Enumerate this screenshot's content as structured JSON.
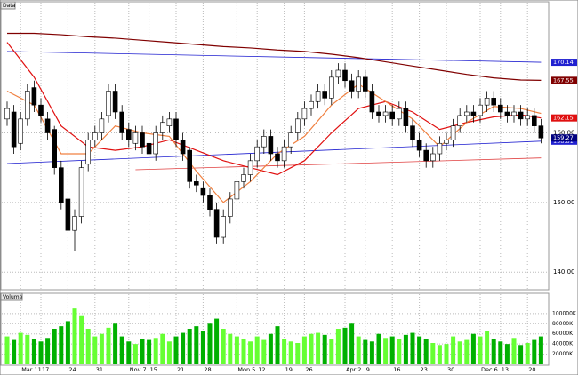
{
  "chart_data": [
    {
      "type": "candlestick",
      "title": "Data",
      "categories": [
        null,
        null,
        "Mar 11",
        null,
        null,
        "17",
        null,
        null,
        null,
        "24",
        null,
        null,
        null,
        "31",
        null,
        null,
        null,
        null,
        "Nov 7",
        null,
        null,
        "15",
        null,
        null,
        null,
        "21",
        null,
        null,
        null,
        "28",
        null,
        null,
        null,
        null,
        "Mon 5",
        null,
        null,
        "12",
        null,
        null,
        null,
        "19",
        null,
        null,
        "26",
        null,
        null,
        null,
        null,
        null,
        "Apr 2",
        null,
        null,
        "9",
        null,
        null,
        null,
        "16",
        null,
        null,
        null,
        "23",
        null,
        null,
        null,
        "30",
        null,
        null,
        null,
        null,
        "Dec 6",
        null,
        null,
        "13",
        null,
        null,
        null,
        "20",
        null,
        null
      ],
      "open": [
        162,
        163,
        158.5,
        162,
        166.5,
        164,
        162,
        160.5,
        155,
        150.5,
        146,
        148,
        155.5,
        159,
        160,
        162.5,
        166,
        163,
        160.5,
        158.5,
        160,
        158.5,
        157,
        160,
        161,
        162,
        159,
        157.5,
        153,
        152,
        151,
        149,
        145,
        148,
        150.5,
        153,
        154,
        156,
        158,
        159.5,
        157,
        156,
        158,
        160,
        162,
        163.5,
        164.5,
        166,
        165,
        168,
        169,
        167.5,
        166,
        168,
        166,
        163,
        162.5,
        163,
        162,
        163.5,
        161,
        159,
        157.5,
        156,
        157,
        158.5,
        159,
        161,
        162.5,
        163,
        162.5,
        164,
        165,
        164,
        163,
        162.5,
        163,
        162,
        162.5,
        161
      ],
      "high": [
        164.5,
        164,
        163,
        167,
        167.5,
        165,
        163,
        161,
        156,
        151,
        149,
        156,
        160,
        161,
        163,
        167,
        167,
        164,
        161.5,
        161,
        161,
        159.5,
        161,
        162.5,
        163,
        163,
        160,
        158,
        154,
        153,
        152,
        150,
        149,
        151.5,
        154,
        155,
        157,
        159,
        160.5,
        160.5,
        158,
        159,
        161,
        163,
        164.5,
        165.5,
        167,
        167,
        169,
        170,
        170,
        168.5,
        169,
        169,
        167,
        164,
        164,
        164,
        164.5,
        164.5,
        162,
        160,
        158.5,
        158,
        159.5,
        160,
        162,
        163.5,
        164,
        164,
        165,
        166,
        166,
        165,
        164,
        164,
        164,
        163.5,
        163.5,
        162
      ],
      "low": [
        161,
        157,
        157.5,
        161,
        163,
        161.5,
        159,
        154,
        149,
        145,
        143,
        147,
        154.5,
        158,
        159,
        161.5,
        162,
        159,
        158,
        157.5,
        157,
        156,
        156,
        159,
        160,
        158,
        156,
        152,
        151.5,
        150,
        148,
        144,
        144,
        147,
        149.5,
        152,
        153,
        155,
        157,
        156,
        155,
        155,
        157,
        159,
        161,
        162.5,
        163.5,
        164,
        164,
        167,
        166.5,
        165,
        165,
        165,
        162,
        161.5,
        161.5,
        161,
        161,
        160,
        158,
        156.5,
        155,
        155,
        156,
        157.5,
        158,
        160,
        161.5,
        161.5,
        161.5,
        163,
        163,
        162,
        161.5,
        161.5,
        161,
        161,
        160,
        158.5
      ],
      "close": [
        163.5,
        158,
        162,
        166,
        164,
        162.5,
        160,
        155,
        150,
        146,
        148,
        155,
        159,
        160,
        162,
        166,
        163,
        160,
        159,
        160,
        158,
        157,
        160,
        161.5,
        162,
        159,
        157,
        153,
        152.5,
        151,
        149,
        145,
        148,
        150.5,
        153,
        154,
        156,
        158,
        159.5,
        157,
        156,
        158,
        160,
        162,
        163.5,
        164.5,
        166,
        165,
        168,
        169,
        167.5,
        166,
        168,
        166,
        163,
        162.5,
        163,
        162,
        163.5,
        161,
        159,
        157.5,
        156,
        157,
        158.5,
        159,
        161,
        162.5,
        163,
        162.5,
        164,
        165,
        164,
        163,
        162.5,
        163,
        162,
        162.5,
        161,
        159.27
      ],
      "close_tag": true,
      "close_tag_color": "#000080",
      "ylim": [
        137.6,
        178.7
      ],
      "yticks": [
        {
          "value": 140,
          "label": "140.00"
        },
        {
          "value": 150,
          "label": "150.00"
        },
        {
          "value": 160,
          "label": "160.00"
        }
      ],
      "grid": true,
      "up_color": "#ffffff",
      "down_color": "#000000",
      "overlays": {
        "x": [
          0,
          4,
          8,
          12,
          16,
          20,
          24,
          28,
          32,
          36,
          40,
          44,
          48,
          52,
          56,
          60,
          64,
          68,
          72,
          76,
          79
        ],
        "series": [
          {
            "color": "#800000",
            "label_last": true,
            "values": [
              174.3,
              174.3,
              174.1,
              173.8,
              173.6,
              173.3,
              173,
              172.7,
              172.4,
              172.2,
              171.9,
              171.7,
              171.3,
              170.8,
              170.2,
              169.6,
              169,
              168.4,
              167.9,
              167.6,
              167.55
            ]
          },
          {
            "color": "#e01010",
            "label_last": true,
            "values": [
              173,
              168,
              161,
              158,
              157.5,
              158,
              159,
              157.5,
              156,
              155,
              154,
              156,
              160,
              163.5,
              164.5,
              163,
              160.5,
              161.5,
              162.3,
              162.6,
              162.15
            ]
          },
          {
            "color": "#f08040",
            "label_last": false,
            "values": [
              166,
              164,
              157,
              157,
              161,
              160,
              159.5,
              154.5,
              150,
              153,
              157,
              159.5,
              164,
              167,
              164.5,
              162,
              158,
              161.5,
              163.8,
              163.5,
              162.8
            ]
          }
        ]
      },
      "trendlines": [
        {
          "color": "#2020d0",
          "label_last": true,
          "x": [
            0,
            79
          ],
          "values": [
            171.7,
            170.14
          ]
        },
        {
          "color": "#2020d0",
          "label_last": true,
          "x": [
            0,
            79
          ],
          "values": [
            155.6,
            158.81
          ]
        },
        {
          "color": "#e04040",
          "label_last": false,
          "x": [
            19,
            79
          ],
          "values": [
            154.7,
            156.4
          ]
        }
      ]
    },
    {
      "type": "bar",
      "title": "Volume",
      "values": [
        55000,
        48000,
        62000,
        58000,
        50000,
        45000,
        52000,
        70000,
        75000,
        85000,
        110000,
        95000,
        70000,
        55000,
        60000,
        72000,
        80000,
        55000,
        45000,
        40000,
        50000,
        48000,
        52000,
        60000,
        45000,
        55000,
        62000,
        70000,
        75000,
        65000,
        80000,
        90000,
        70000,
        60000,
        55000,
        50000,
        45000,
        55000,
        48000,
        60000,
        75000,
        50000,
        45000,
        42000,
        55000,
        60000,
        62000,
        58000,
        50000,
        70000,
        72000,
        80000,
        55000,
        48000,
        45000,
        60000,
        52000,
        55000,
        50000,
        58000,
        62000,
        55000,
        50000,
        42000,
        38000,
        40000,
        55000,
        45000,
        48000,
        60000,
        55000,
        65000,
        50000,
        45000,
        40000,
        52000,
        38000,
        42000,
        48000,
        55000
      ],
      "ylim": [
        0,
        126000
      ],
      "yticks": [
        {
          "value": 20000,
          "label": "20000K"
        },
        {
          "value": 40000,
          "label": "40000K"
        },
        {
          "value": 60000,
          "label": "60000K"
        },
        {
          "value": 80000,
          "label": "80000K"
        },
        {
          "value": 100000,
          "label": "100000K"
        }
      ],
      "grid": true,
      "up_color": "#66ff33",
      "down_color": "#00b000"
    }
  ]
}
